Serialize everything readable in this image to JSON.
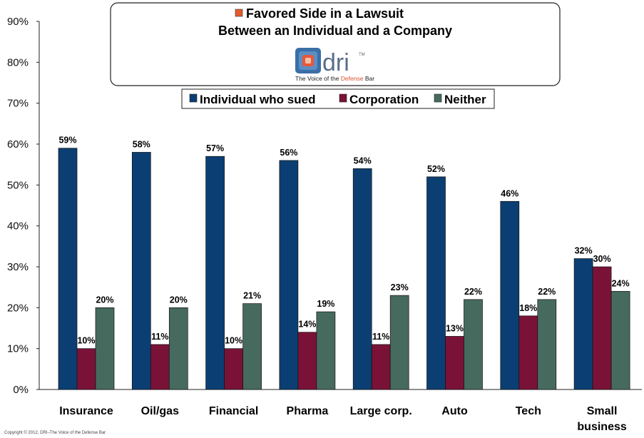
{
  "title": {
    "line1": "Favored Side in a Lawsuit",
    "line2": "Between an Individual and a Company"
  },
  "logo": {
    "word": "dri",
    "tm": "TM",
    "tagline_prefix": "The Voice of the ",
    "tagline_accent": "Defense",
    "tagline_suffix": " Bar"
  },
  "copyright": "Copyright © 2012, DRI–The Voice of the Defense Bar",
  "chart_data": {
    "type": "bar",
    "categories": [
      [
        "Insurance"
      ],
      [
        "Oil/gas"
      ],
      [
        "Financial"
      ],
      [
        "Pharma"
      ],
      [
        "Large corp."
      ],
      [
        "Auto"
      ],
      [
        "Tech"
      ],
      [
        "Small",
        "business"
      ]
    ],
    "series": [
      {
        "name": "Individual who sued",
        "color": "#0b3f73",
        "values": [
          59,
          58,
          57,
          56,
          54,
          52,
          46,
          32
        ]
      },
      {
        "name": "Corporation",
        "color": "#7a1238",
        "values": [
          10,
          11,
          10,
          14,
          11,
          13,
          18,
          30
        ]
      },
      {
        "name": "Neither",
        "color": "#476a5e",
        "values": [
          20,
          20,
          21,
          19,
          23,
          22,
          22,
          24
        ]
      }
    ],
    "value_suffix": "%",
    "ylim": [
      0,
      90
    ],
    "yticks": [
      "0%",
      "10%",
      "20%",
      "30%",
      "40%",
      "50%",
      "60%",
      "70%",
      "80%",
      "90%"
    ],
    "grid": false,
    "legend_position": "top-center",
    "title_marker_color": "#e35a2b"
  }
}
